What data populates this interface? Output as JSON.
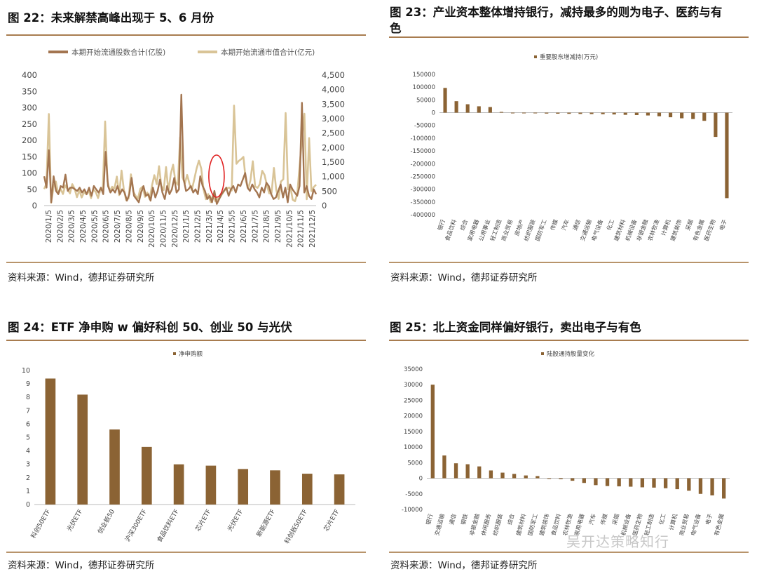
{
  "panels": {
    "p22": {
      "title": "图 22：未来解禁高峰出现于 5、6 月份",
      "source": "资料来源：Wind，德邦证券研究所"
    },
    "p23": {
      "title_line1": "图 23：产业资本整体增持银行，减持最多的则为电子、医药与有",
      "title_line2": "色",
      "source": "资料来源：Wind，德邦证券研究所"
    },
    "p24": {
      "title": "图 24：ETF 净申购 w 偏好科创 50、创业 50 与光伏",
      "source": "资料来源：Wind，德邦证券研究所"
    },
    "p25": {
      "title": "图 25：北上资金同样偏好银行，卖出电子与有色",
      "source": "资料来源：Wind，德邦证券研究所"
    }
  },
  "watermark": "吴开达策略知行",
  "colors": {
    "bar": "#8b6334",
    "line1": "#a37550",
    "line2": "#d9c497",
    "highlight": "#e02020",
    "rule": "#a87c4f"
  },
  "chart_data": [
    {
      "id": "p22",
      "type": "line",
      "legend_position": "top",
      "series": [
        {
          "name": "本期开始流通股数合计(亿股)",
          "axis": "left",
          "values": [
            90,
            55,
            170,
            10,
            90,
            45,
            35,
            60,
            55,
            95,
            45,
            55,
            55,
            50,
            45,
            55,
            40,
            50,
            35,
            55,
            30,
            60,
            50,
            40,
            55,
            35,
            165,
            60,
            40,
            50,
            40,
            60,
            35,
            50,
            40,
            15,
            35,
            85,
            30,
            20,
            10,
            40,
            60,
            30,
            35,
            15,
            55,
            25,
            45,
            80,
            40,
            20,
            60,
            35,
            50,
            85,
            40,
            50,
            340,
            80,
            45,
            50,
            60,
            40,
            50,
            35,
            90,
            60,
            45,
            20,
            30,
            10,
            45,
            5,
            20,
            35,
            45,
            55,
            30,
            50,
            60,
            40,
            65,
            60,
            80,
            100,
            55,
            45,
            65,
            50,
            40,
            25,
            55,
            40,
            70,
            60,
            35,
            20,
            25,
            45,
            65,
            25,
            55,
            10,
            65,
            50,
            40,
            30,
            60,
            315,
            40,
            60,
            30,
            20,
            50,
            35
          ]
        },
        {
          "name": "本期开始流通市值合计(亿元)",
          "axis": "right",
          "values": [
            570,
            760,
            3160,
            100,
            650,
            830,
            400,
            580,
            400,
            700,
            560,
            420,
            740,
            580,
            290,
            530,
            280,
            460,
            390,
            520,
            260,
            560,
            470,
            260,
            560,
            510,
            2900,
            840,
            500,
            650,
            590,
            1000,
            360,
            1210,
            550,
            180,
            250,
            1080,
            480,
            340,
            240,
            580,
            650,
            300,
            450,
            220,
            700,
            1050,
            740,
            1360,
            680,
            540,
            1330,
            480,
            1090,
            1410,
            820,
            720,
            2360,
            980,
            760,
            1060,
            750,
            540,
            900,
            1270,
            1550,
            1280,
            560,
            220,
            400,
            120,
            360,
            150,
            230,
            280,
            410,
            530,
            600,
            620,
            520,
            3450,
            1440,
            1540,
            1600,
            1680,
            850,
            580,
            870,
            1530,
            660,
            610,
            740,
            1200,
            1060,
            700,
            420,
            430,
            1300,
            540,
            230,
            830,
            910,
            3190,
            560,
            660,
            200,
            150,
            420,
            1420,
            2270,
            3170,
            220,
            2330,
            500,
            640,
            720
          ]
        }
      ],
      "x_ticks": [
        "2020/1/5",
        "2020/2/5",
        "2020/3/5",
        "2020/4/5",
        "2020/5/5",
        "2020/6/5",
        "2020/7/5",
        "2020/8/5",
        "2020/9/5",
        "2020/10/5",
        "2020/11/5",
        "2020/12/5",
        "2021/1/5",
        "2021/2/5",
        "2021/3/5",
        "2021/4/5",
        "2021/5/5",
        "2021/6/5",
        "2021/7/5",
        "2021/8/5",
        "2021/9/5",
        "2021/10/5",
        "2021/11/5",
        "2021/12/5"
      ],
      "y_left_ticks": [
        "400",
        "350",
        "300",
        "250",
        "200",
        "150",
        "100",
        "50",
        "0"
      ],
      "y_right_ticks": [
        "4,500",
        "4,000",
        "3,500",
        "3,000",
        "2,500",
        "2,000",
        "1,500",
        "1,000",
        "500",
        "0"
      ],
      "ylim_left": [
        0,
        400
      ],
      "ylim_right": [
        0,
        4500
      ],
      "grid": false
    },
    {
      "id": "p23",
      "type": "bar",
      "legend": "重要股东增减持(万元)",
      "legend_position": "top",
      "categories": [
        "银行",
        "食品饮料",
        "综合",
        "家用电器",
        "公用事业",
        "轻工制造",
        "商业贸易",
        "房地产",
        "纺织服装",
        "国防军工",
        "传媒",
        "汽车",
        "通信",
        "交通运输",
        "电气设备",
        "化工",
        "建筑材料",
        "机械设备",
        "非银金融",
        "农林牧渔",
        "计算机",
        "建筑装饰",
        "采掘",
        "有色金属",
        "医药生物",
        "电子"
      ],
      "values": [
        97000,
        45000,
        33000,
        25000,
        22000,
        3000,
        -1000,
        -1500,
        -2000,
        -3500,
        -4000,
        -4500,
        -5000,
        -5500,
        -6000,
        -7000,
        -8500,
        -9500,
        -11000,
        -14000,
        -18000,
        -22000,
        -25000,
        -32000,
        -95000,
        -335000
      ],
      "y_ticks": [
        "150000",
        "100000",
        "50000",
        "0",
        "-50000",
        "-100000",
        "-150000",
        "-200000",
        "-250000",
        "-300000",
        "-350000",
        "-400000"
      ],
      "ylim": [
        -400000,
        150000
      ]
    },
    {
      "id": "p24",
      "type": "bar",
      "legend": "净申购额",
      "legend_position": "top",
      "categories": [
        "科创50ETF",
        "光伏ETF",
        "创业板50",
        "沪深300ETF",
        "食品饮料ETF",
        "芯片ETF",
        "光伏ETF",
        "新能源ETF",
        "科创板50ETF",
        "芯片ETF"
      ],
      "values": [
        9.4,
        8.2,
        5.6,
        4.3,
        3.0,
        2.9,
        2.65,
        2.55,
        2.3,
        2.25
      ],
      "y_ticks": [
        "10",
        "9",
        "8",
        "7",
        "6",
        "5",
        "4",
        "3",
        "2",
        "1",
        "0"
      ],
      "ylim": [
        0,
        10
      ]
    },
    {
      "id": "p25",
      "type": "bar",
      "legend": "陆股通持股量变化",
      "legend_position": "top",
      "categories": [
        "银行",
        "交通运输",
        "通信",
        "钢铁",
        "非银金融",
        "休闲服务",
        "纺织服装",
        "综合",
        "建筑材料",
        "国防军工",
        "建筑装饰",
        "食品饮料",
        "农林牧渔",
        "家用电器",
        "汽车",
        "传媒",
        "采掘",
        "机械设备",
        "医药生物",
        "轻工制造",
        "化工",
        "计算机",
        "商业贸易",
        "电气设备",
        "电子",
        "有色金属"
      ],
      "values": [
        30000,
        7300,
        4800,
        4500,
        3800,
        2500,
        1800,
        1400,
        900,
        700,
        -200,
        -300,
        -800,
        -1500,
        -2200,
        -2500,
        -2600,
        -2700,
        -2900,
        -3000,
        -3200,
        -3500,
        -4000,
        -5000,
        -5500,
        -6500
      ],
      "y_ticks": [
        "35000",
        "30000",
        "25000",
        "20000",
        "15000",
        "10000",
        "5000",
        "0",
        "-5000",
        "-10000"
      ],
      "ylim": [
        -10000,
        35000
      ]
    }
  ]
}
